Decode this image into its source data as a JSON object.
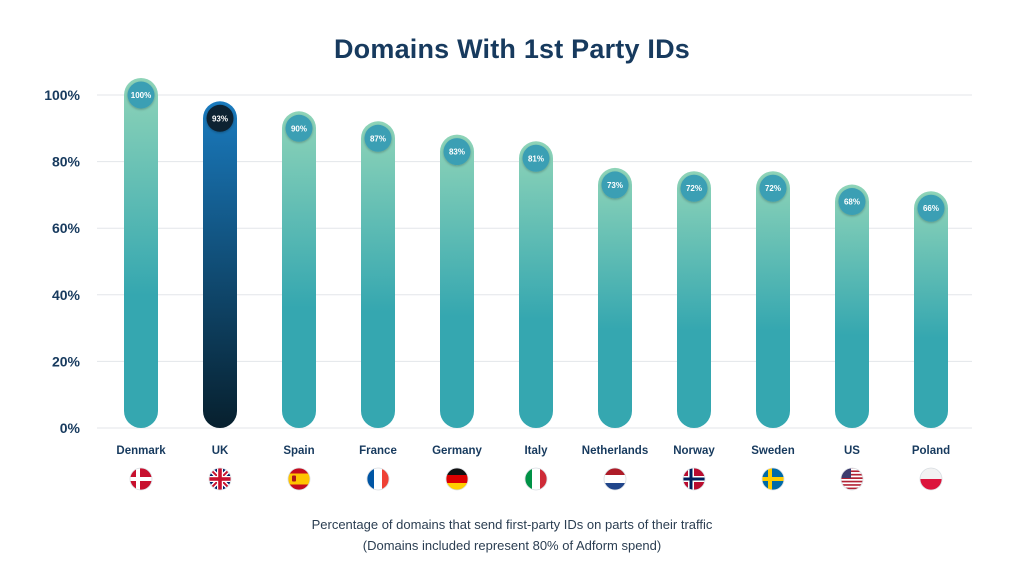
{
  "title": "Domains With 1st Party IDs",
  "caption": {
    "line1": "Percentage of domains that send first-party IDs on parts of their traffic",
    "line2": "(Domains included represent 80% of Adform spend)"
  },
  "colors": {
    "bar_top": "#8fd4b8",
    "bar_bottom": "#35a7b0",
    "highlight_top": "#1a7bbf",
    "highlight_bottom": "#07202e",
    "badge": "#3a9fb4",
    "badge_highlight": "#0b2233",
    "axis_text": "#173a5e",
    "grid": "#e3e6ea"
  },
  "chart_data": {
    "type": "bar",
    "title": "Domains With 1st Party IDs",
    "categories": [
      "Denmark",
      "UK",
      "Spain",
      "France",
      "Germany",
      "Italy",
      "Netherlands",
      "Norway",
      "Sweden",
      "US",
      "Poland"
    ],
    "values": [
      100,
      93,
      90,
      87,
      83,
      81,
      73,
      72,
      72,
      68,
      66
    ],
    "value_labels": [
      "100%",
      "93%",
      "90%",
      "87%",
      "83%",
      "81%",
      "73%",
      "72%",
      "72%",
      "68%",
      "66%"
    ],
    "highlight": "UK",
    "flags": [
      "flag-denmark-icon",
      "flag-uk-icon",
      "flag-spain-icon",
      "flag-france-icon",
      "flag-germany-icon",
      "flag-italy-icon",
      "flag-netherlands-icon",
      "flag-norway-icon",
      "flag-sweden-icon",
      "flag-us-icon",
      "flag-poland-icon"
    ],
    "yticks": [
      "0%",
      "20%",
      "40%",
      "60%",
      "80%",
      "100%"
    ],
    "ylim": [
      0,
      100
    ],
    "grid": true,
    "xlabel": "",
    "ylabel": ""
  }
}
